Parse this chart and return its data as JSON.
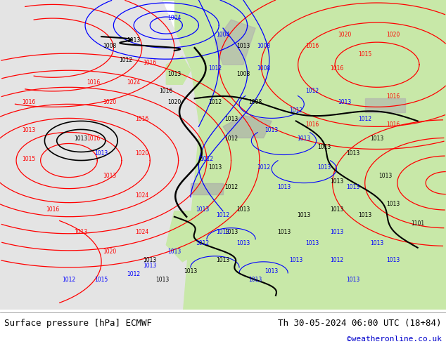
{
  "title_left": "Surface pressure [hPa] ECMWF",
  "title_right": "Th 30-05-2024 06:00 UTC (18+84)",
  "credit": "©weatheronline.co.uk",
  "fig_width": 6.34,
  "fig_height": 4.9,
  "dpi": 100,
  "title_fontsize": 9,
  "credit_fontsize": 8,
  "credit_color": "#0000cc",
  "land_color": "#c8e8b0",
  "ocean_color": "#e8e8e8",
  "footer_bg": "#f0f0f0",
  "map_bg": "#dcdcdc"
}
